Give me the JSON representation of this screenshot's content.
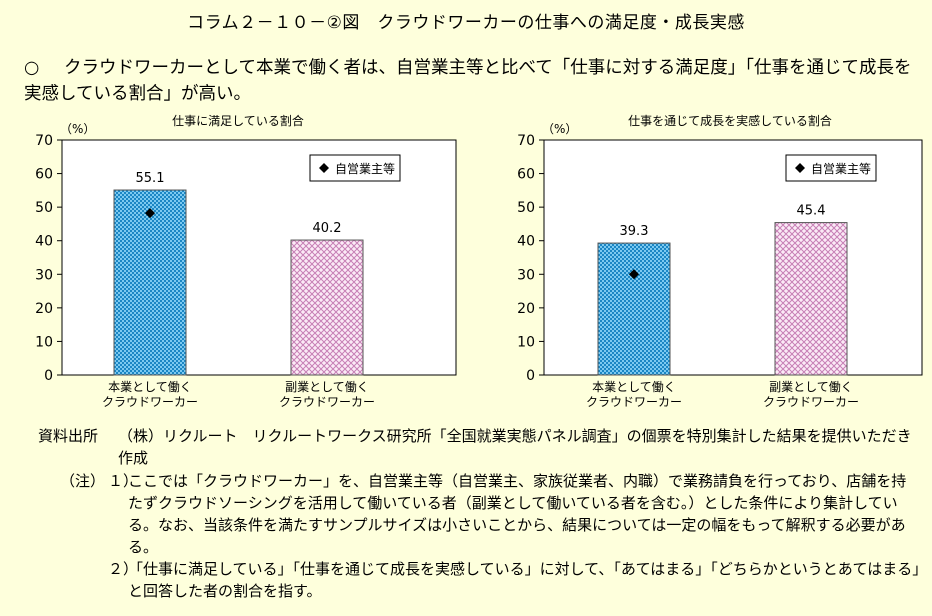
{
  "title": "コラム２－１０－②図　クラウドワーカーの仕事への満足度・成長実感",
  "summary": {
    "bullet": "○",
    "text": "クラウドワーカーとして本業で働く者は、自営業主等と比べて「仕事に対する満足度」「仕事を通じて成長を実感している割合」が高い。"
  },
  "chart_data": [
    {
      "type": "bar",
      "title": "仕事に満足している割合",
      "ylabel": "（%）",
      "ylim": [
        0,
        70
      ],
      "yticks": [
        0,
        10,
        20,
        30,
        40,
        50,
        60,
        70
      ],
      "categories": [
        [
          "本業として働く",
          "クラウドワーカー"
        ],
        [
          "副業として働く",
          "クラウドワーカー"
        ]
      ],
      "values": [
        55.1,
        40.2
      ],
      "value_labels": [
        "55.1",
        "40.2"
      ],
      "bar_colors": [
        "#1e9ad6",
        "#e08fc8"
      ],
      "marker": {
        "legend": "自営業主等",
        "value": 48.2,
        "category_index": 0
      },
      "legend_placement": "top-right"
    },
    {
      "type": "bar",
      "title": "仕事を通じて成長を実感している割合",
      "ylabel": "（%）",
      "ylim": [
        0,
        70
      ],
      "yticks": [
        0,
        10,
        20,
        30,
        40,
        50,
        60,
        70
      ],
      "categories": [
        [
          "本業として働く",
          "クラウドワーカー"
        ],
        [
          "副業として働く",
          "クラウドワーカー"
        ]
      ],
      "values": [
        39.3,
        45.4
      ],
      "value_labels": [
        "39.3",
        "45.4"
      ],
      "bar_colors": [
        "#1e9ad6",
        "#e08fc8"
      ],
      "marker": {
        "legend": "自営業主等",
        "value": 30.0,
        "category_index": 0
      },
      "legend_placement": "top-right"
    }
  ],
  "source": {
    "label": "資料出所",
    "text": "（株）リクルート　リクルートワークス研究所「全国就業実態パネル調査」の個票を特別集計した結果を提供いただき作成"
  },
  "notes": {
    "label": "（注）",
    "items": [
      {
        "num": "１）",
        "text": "ここでは「クラウドワーカー」を、自営業主等（自営業主、家族従業者、内職）で業務請負を行っており、店舗を持たずクラウドソーシングを活用して働いている者（副業として働いている者を含む。）とした条件により集計している。なお、当該条件を満たすサンプルサイズは小さいことから、結果については一定の幅をもって解釈する必要がある。"
      },
      {
        "num": "２）",
        "text": "「仕事に満足している」「仕事を通じて成長を実感している」に対して、「あてはまる」「どちらかというとあてはまる」と回答した者の割合を指す。"
      }
    ]
  }
}
